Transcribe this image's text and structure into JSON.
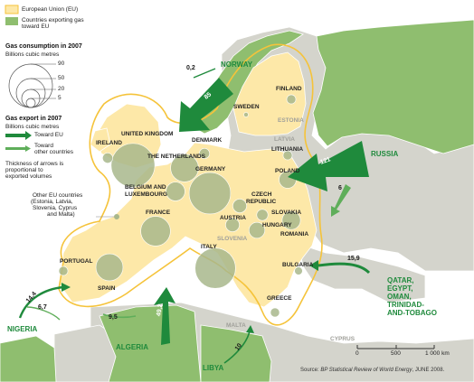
{
  "legend": {
    "eu_label": "European Union (EU)",
    "exporting_label_1": "Countries exporting gas",
    "exporting_label_2": "toward EU",
    "consumption_title": "Gas consumption in 2007",
    "consumption_unit": "Billions cubic metres",
    "circle_values": [
      "90",
      "50",
      "20",
      "5"
    ],
    "export_title": "Gas export in 2007",
    "export_unit": "Billions cubic metres",
    "toward_eu": "Toward EU",
    "toward_other_1": "Toward",
    "toward_other_2": "other countries",
    "thickness_note": [
      "Thickness of arrows is",
      "proportional to",
      "exported volumes"
    ],
    "colors": {
      "eu": "#fde8a8",
      "exporting": "#8fbe6f",
      "arrow": "#1f8a3c",
      "bubble": "#a8b78c"
    }
  },
  "other_eu": [
    "Other EU countries",
    "(Estonia, Latvia,",
    "Slovenia, Cyprus",
    "and Malta)"
  ],
  "countries": {
    "norway": "NORWAY",
    "russia": "RUSSIA",
    "nigeria": "NIGERIA",
    "algeria": "ALGERIA",
    "libya": "LIBYA",
    "qatar_group": [
      "QATAR,",
      "EGYPT,",
      "OMAN,",
      "TRINIDAD-",
      "AND-TOBAGO"
    ],
    "finland": "FINLAND",
    "sweden": "SWEDEN",
    "estonia": "ESTONIA",
    "latvia": "LATVIA",
    "lithuania": "LITHUANIA",
    "denmark": "DENMARK",
    "united_kingdom": "UNITED KINGDOM",
    "ireland": "IRELAND",
    "netherlands": "THE NETHERLANDS",
    "germany": "GERMANY",
    "poland": "POLAND",
    "belgium_lux": [
      "BELGIUM AND",
      "LUXEMBOURG"
    ],
    "czech": [
      "CZECH",
      "REPUBLIC"
    ],
    "slovakia": "SLOVAKIA",
    "austria": "AUSTRIA",
    "hungary": "HUNGARY",
    "france": "FRANCE",
    "romania": "ROMANIA",
    "slovenia": "SLOVENIA",
    "italy": "ITALY",
    "bulgaria": "BULGARIA",
    "portugal": "PORTUGAL",
    "spain": "SPAIN",
    "greece": "GREECE",
    "malta": "MALTA",
    "cyprus": "CYPRUS"
  },
  "flows": {
    "norway_other": "0,2",
    "norway_eu": "85",
    "russia_eu": "121",
    "russia_other": "6",
    "qatar_group": "15,9",
    "nigeria_eu": "14,4",
    "nigeria_other": "6,7",
    "algeria_other": "9,5",
    "algeria_eu": "49,2",
    "libya": "10"
  },
  "scale": {
    "labels": [
      "0",
      "500",
      "1 000 km"
    ]
  },
  "source": {
    "prefix": "Source: ",
    "title": "BP Statistical Review of World Energy",
    "suffix": ", JUNE 2008."
  },
  "map_data": {
    "consumption_bcm_2007": {
      "united_kingdom": 91,
      "germany": 82,
      "italy": 78,
      "the_netherlands": 37,
      "france": 42,
      "spain": 35,
      "belgium_luxembourg": 17,
      "romania": 16,
      "poland": 14,
      "hungary": 12,
      "czech_republic": 9,
      "austria": 9,
      "denmark": 5,
      "ireland": 5,
      "portugal": 4,
      "slovakia": 6,
      "bulgaria": 3,
      "greece": 4,
      "finland": 4,
      "lithuania": 4,
      "sweden": 1
    }
  }
}
